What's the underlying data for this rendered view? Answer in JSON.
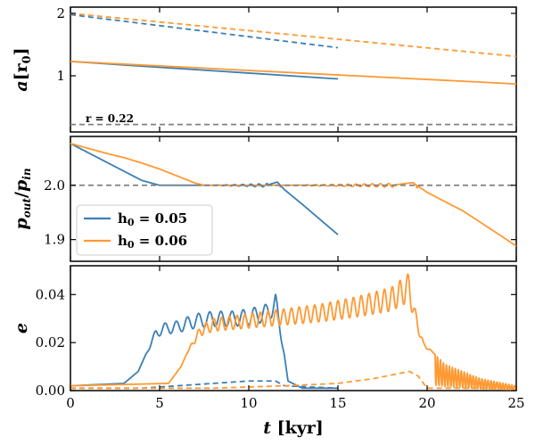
{
  "colors": {
    "h005": "#3a7fb5",
    "h006": "#ff9933",
    "ref": "#808080"
  },
  "chart_data": [
    {
      "type": "line",
      "panel": "top",
      "ylabel_main": "a",
      "ylabel_unit": "[r",
      "ylabel_sub": "0",
      "ylabel_close": "]",
      "xlim": [
        0,
        25
      ],
      "ylim": [
        0.1,
        2.1
      ],
      "yticks": [
        "1",
        "2"
      ],
      "ytick_values": [
        1,
        2
      ],
      "annotation": "r = 0.22",
      "series": [
        {
          "name": "h0=0.05 outer",
          "style": "dashed",
          "color": "h005",
          "x": [
            0,
            15
          ],
          "y": [
            1.98,
            1.45
          ]
        },
        {
          "name": "h0=0.05 inner",
          "style": "solid",
          "color": "h005",
          "x": [
            0,
            15
          ],
          "y": [
            1.23,
            0.95
          ]
        },
        {
          "name": "h0=0.06 outer",
          "style": "dashed",
          "color": "h006",
          "x": [
            0,
            25
          ],
          "y": [
            2.0,
            1.31
          ]
        },
        {
          "name": "h0=0.06 inner",
          "style": "solid",
          "color": "h006",
          "x": [
            0,
            25
          ],
          "y": [
            1.23,
            0.87
          ]
        },
        {
          "name": "r = 0.22",
          "style": "dashed",
          "color": "ref",
          "x": [
            0,
            25
          ],
          "y": [
            0.22,
            0.22
          ]
        }
      ]
    },
    {
      "type": "line",
      "panel": "middle",
      "ylabel_num": "p",
      "ylabel_num_sub": "out",
      "ylabel_den": "p",
      "ylabel_den_sub": "in",
      "xlim": [
        0,
        25
      ],
      "ylim": [
        1.86,
        2.09
      ],
      "yticks": [
        "1.9",
        "2.0"
      ],
      "ytick_values": [
        1.9,
        2.0
      ],
      "legend": [
        {
          "label": "h",
          "sub": "0",
          "rest": " = 0.05",
          "color": "h005"
        },
        {
          "label": "h",
          "sub": "0",
          "rest": " = 0.06",
          "color": "h006"
        }
      ],
      "series": [
        {
          "name": "h0 = 0.05",
          "color": "h005",
          "x": [
            0,
            1,
            2,
            3,
            4,
            5,
            6,
            7,
            8,
            9,
            10,
            11,
            11.6,
            12,
            13,
            14,
            15
          ],
          "y": [
            2.077,
            2.06,
            2.043,
            2.026,
            2.009,
            2.0,
            2.0,
            2.0,
            2.0,
            2.0,
            2.0,
            2.0,
            2.006,
            1.992,
            1.965,
            1.937,
            1.909
          ]
        },
        {
          "name": "h0 = 0.06",
          "color": "h006",
          "x": [
            0,
            1,
            2,
            3,
            4,
            5,
            6,
            7,
            7.5,
            8,
            10,
            12,
            14,
            16,
            18,
            19.2,
            20,
            22,
            24,
            25
          ],
          "y": [
            2.077,
            2.068,
            2.059,
            2.051,
            2.041,
            2.03,
            2.017,
            2.004,
            2.0,
            2.0,
            2.0,
            2.0,
            2.0,
            2.0,
            2.0,
            2.005,
            1.987,
            1.953,
            1.91,
            1.888
          ]
        },
        {
          "name": "2.0 ref",
          "color": "ref",
          "style": "dashed",
          "x": [
            0,
            25
          ],
          "y": [
            2.0,
            2.0
          ]
        }
      ]
    },
    {
      "type": "line",
      "panel": "bottom",
      "ylabel": "e",
      "xlabel_var": "t",
      "xlabel_unit": "[kyr]",
      "xlim": [
        0,
        25
      ],
      "ylim": [
        0,
        0.052
      ],
      "yticks": [
        "0.00",
        "0.02",
        "0.04"
      ],
      "ytick_values": [
        0.0,
        0.02,
        0.04
      ],
      "xticks": [
        "0",
        "5",
        "10",
        "15",
        "20",
        "25"
      ],
      "xtick_values": [
        0,
        5,
        10,
        15,
        20,
        25
      ],
      "series": [
        {
          "name": "h0=0.05 e",
          "color": "h005",
          "style": "solid",
          "envelope": {
            "x": [
              0,
              3,
              3.8,
              4.4,
              4.8,
              5.2,
              6,
              7,
              8,
              9,
              10,
              11,
              11.5,
              11.8,
              12.2,
              13,
              15
            ],
            "y": [
              0.002,
              0.003,
              0.008,
              0.018,
              0.026,
              0.028,
              0.029,
              0.032,
              0.033,
              0.033,
              0.034,
              0.036,
              0.041,
              0.025,
              0.004,
              0.001,
              0.001
            ]
          }
        },
        {
          "name": "h0=0.06 e",
          "color": "h006",
          "style": "solid",
          "envelope": {
            "x": [
              0,
              5.5,
              6.2,
              6.8,
              7.3,
              8,
              10,
              12,
              14,
              16,
              18,
              19,
              19.3,
              19.8,
              21,
              23,
              25
            ],
            "y": [
              0.002,
              0.003,
              0.01,
              0.02,
              0.027,
              0.03,
              0.032,
              0.034,
              0.036,
              0.039,
              0.043,
              0.049,
              0.035,
              0.02,
              0.011,
              0.005,
              0.002
            ]
          }
        },
        {
          "name": "h0=0.05 e dashed",
          "color": "h005",
          "style": "dashed",
          "envelope": {
            "x": [
              0,
              4,
              6,
              8,
              10,
              11.5,
              12,
              15
            ],
            "y": [
              0.001,
              0.001,
              0.002,
              0.003,
              0.004,
              0.004,
              0.002,
              0.001
            ]
          }
        },
        {
          "name": "h0=0.06 e dashed",
          "color": "h006",
          "style": "dashed",
          "envelope": {
            "x": [
              0,
              8,
              12,
              15,
              17,
              19,
              19.5,
              20,
              25
            ],
            "y": [
              0.001,
              0.001,
              0.002,
              0.003,
              0.005,
              0.008,
              0.006,
              0.001,
              0.001
            ]
          }
        }
      ]
    }
  ]
}
